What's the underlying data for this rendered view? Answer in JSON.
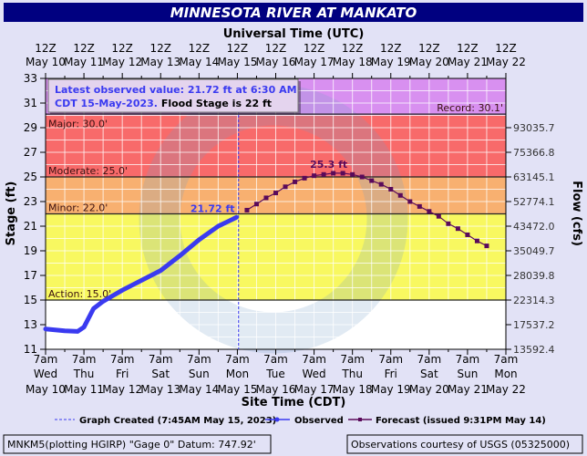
{
  "chart_data": {
    "type": "line",
    "title": "MINNESOTA RIVER AT MANKATO",
    "top_axis_label": "Universal Time (UTC)",
    "bottom_axis_label": "Site Time (CDT)",
    "ylabel": "Stage (ft)",
    "y2label": "Flow (cfs)",
    "ylim": [
      11,
      33
    ],
    "xlim": [
      "2023-05-10T12:00Z",
      "2023-05-22T12:00Z"
    ],
    "grid": true,
    "y_ticks": [
      11,
      13,
      15,
      17,
      19,
      21,
      23,
      25,
      27,
      29,
      31,
      33
    ],
    "y2_ticks": [
      {
        "stage": 29,
        "label": "93035.7"
      },
      {
        "stage": 27,
        "label": "75366.8"
      },
      {
        "stage": 25,
        "label": "63145.1"
      },
      {
        "stage": 23,
        "label": "52774.1"
      },
      {
        "stage": 21,
        "label": "43472.0"
      },
      {
        "stage": 19,
        "label": "35049.7"
      },
      {
        "stage": 17,
        "label": "28039.8"
      },
      {
        "stage": 15,
        "label": "22314.3"
      },
      {
        "stage": 13,
        "label": "17537.2"
      },
      {
        "stage": 11,
        "label": "13592.4"
      }
    ],
    "utc_ticks": [
      {
        "top": "12Z",
        "bottom": "May 10"
      },
      {
        "top": "12Z",
        "bottom": "May 11"
      },
      {
        "top": "12Z",
        "bottom": "May 12"
      },
      {
        "top": "12Z",
        "bottom": "May 13"
      },
      {
        "top": "12Z",
        "bottom": "May 14"
      },
      {
        "top": "12Z",
        "bottom": "May 15"
      },
      {
        "top": "12Z",
        "bottom": "May 16"
      },
      {
        "top": "12Z",
        "bottom": "May 17"
      },
      {
        "top": "12Z",
        "bottom": "May 18"
      },
      {
        "top": "12Z",
        "bottom": "May 19"
      },
      {
        "top": "12Z",
        "bottom": "May 20"
      },
      {
        "top": "12Z",
        "bottom": "May 21"
      },
      {
        "top": "12Z",
        "bottom": "May 22"
      }
    ],
    "local_ticks": [
      {
        "time": "7am",
        "day": "Wed",
        "date": "May 10"
      },
      {
        "time": "7am",
        "day": "Thu",
        "date": "May 11"
      },
      {
        "time": "7am",
        "day": "Fri",
        "date": "May 12"
      },
      {
        "time": "7am",
        "day": "Sat",
        "date": "May 13"
      },
      {
        "time": "7am",
        "day": "Sun",
        "date": "May 14"
      },
      {
        "time": "7am",
        "day": "Mon",
        "date": "May 15"
      },
      {
        "time": "7am",
        "day": "Tue",
        "date": "May 16"
      },
      {
        "time": "7am",
        "day": "Wed",
        "date": "May 17"
      },
      {
        "time": "7am",
        "day": "Thu",
        "date": "May 18"
      },
      {
        "time": "7am",
        "day": "Fri",
        "date": "May 19"
      },
      {
        "time": "7am",
        "day": "Sat",
        "date": "May 20"
      },
      {
        "time": "7am",
        "day": "Sun",
        "date": "May 21"
      },
      {
        "time": "7am",
        "day": "Mon",
        "date": "May 22"
      }
    ],
    "flood_categories": [
      {
        "name": "Record",
        "label": "Record: 30.1'",
        "stage": 30.1,
        "color": "#d890f0"
      },
      {
        "name": "Major",
        "label": "Major: 30.0'",
        "stage": 30.0,
        "color": "#f86a6a"
      },
      {
        "name": "Moderate",
        "label": "Moderate: 25.0'",
        "stage": 25.0,
        "color": "#f8b070"
      },
      {
        "name": "Minor",
        "label": "Minor: 22.0'",
        "stage": 22.0,
        "color": "#f8f860"
      },
      {
        "name": "Action",
        "label": "Action: 15.0'",
        "stage": 15.0,
        "color": "#ffffff"
      }
    ],
    "series": [
      {
        "name": "Observed",
        "color": "#3a3af0",
        "points": [
          [
            "2023-05-10T12:00Z",
            12.65
          ],
          [
            "2023-05-11T00:00Z",
            12.5
          ],
          [
            "2023-05-11T08:00Z",
            12.45
          ],
          [
            "2023-05-11T12:00Z",
            12.8
          ],
          [
            "2023-05-11T18:00Z",
            14.3
          ],
          [
            "2023-05-12T00:00Z",
            14.9
          ],
          [
            "2023-05-12T12:00Z",
            15.8
          ],
          [
            "2023-05-13T12:00Z",
            17.4
          ],
          [
            "2023-05-14T00:00Z",
            18.6
          ],
          [
            "2023-05-14T12:00Z",
            19.9
          ],
          [
            "2023-05-15T00:00Z",
            21.0
          ],
          [
            "2023-05-15T11:30Z",
            21.72
          ]
        ],
        "label": "21.72 ft"
      },
      {
        "name": "Forecast (issued 9:31PM May 14)",
        "color": "#5a0a5a",
        "start": "2023-05-15T18:00Z",
        "interval_hours": 6,
        "values": [
          22.3,
          22.8,
          23.3,
          23.7,
          24.2,
          24.6,
          24.9,
          25.1,
          25.2,
          25.3,
          25.3,
          25.2,
          25.0,
          24.7,
          24.4,
          24.0,
          23.5,
          23.0,
          22.6,
          22.2,
          21.8,
          21.2,
          20.8,
          20.3,
          19.8,
          19.4
        ],
        "label": "25.3 ft"
      }
    ],
    "graph_created": {
      "time": "2023-05-15T12:45Z",
      "label": "Graph Created (7:45AM May 15, 2023)"
    },
    "latest_box": {
      "line1": "Latest observed value: 21.72 ft at 6:30 AM",
      "line2a": "CDT 15-May-2023.",
      "line2b": "Flood Stage is 22 ft"
    },
    "legend_placement": "bottom"
  },
  "footer": {
    "left": "MNKM5(plotting HGIRP) \"Gage 0\" Datum: 747.92'",
    "right": "Observations courtesy of USGS (05325000)"
  }
}
